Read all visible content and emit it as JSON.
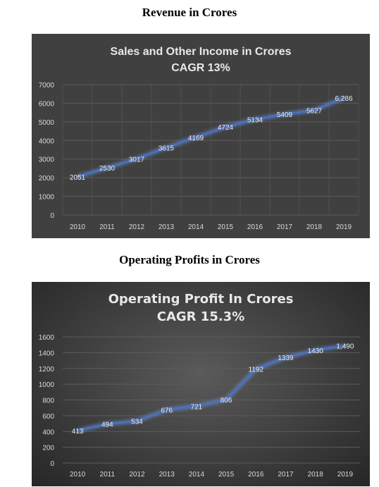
{
  "headings": {
    "revenue": "Revenue in Crores",
    "operating": "Operating Profits in Crores"
  },
  "chart_data": [
    {
      "type": "line",
      "title": "Sales and Other Income in Crores",
      "subtitle": "CAGR 13%",
      "xlabel": "",
      "ylabel": "",
      "categories": [
        "2010",
        "2011",
        "2012",
        "2013",
        "2014",
        "2015",
        "2016",
        "2017",
        "2018",
        "2019"
      ],
      "values": [
        2051,
        2530,
        3017,
        3615,
        4169,
        4724,
        5134,
        5409,
        5627,
        6286
      ],
      "data_labels": [
        "2051",
        "2530",
        "3017",
        "3615",
        "4169",
        "4724",
        "5134",
        "5409",
        "5627",
        "6,286"
      ],
      "yticks": [
        0,
        1000,
        2000,
        3000,
        4000,
        5000,
        6000,
        7000
      ],
      "ylim": [
        0,
        7000
      ],
      "grid": true,
      "legend": "none",
      "line_color": "#4472c4"
    },
    {
      "type": "line",
      "title": "Operating Profit In Crores",
      "subtitle": "CAGR 15.3%",
      "xlabel": "",
      "ylabel": "",
      "categories": [
        "2010",
        "2011",
        "2012",
        "2013",
        "2014",
        "2015",
        "2016",
        "2017",
        "2018",
        "2019"
      ],
      "values": [
        413,
        494,
        534,
        676,
        721,
        806,
        1192,
        1339,
        1430,
        1490
      ],
      "data_labels": [
        "413",
        "494",
        "534",
        "676",
        "721",
        "806",
        "1192",
        "1339",
        "1430",
        "1,490"
      ],
      "yticks": [
        0,
        200,
        400,
        600,
        800,
        1000,
        1200,
        1400,
        1600
      ],
      "ylim": [
        0,
        1600
      ],
      "grid": true,
      "legend": "none",
      "line_color": "#4472c4"
    }
  ]
}
